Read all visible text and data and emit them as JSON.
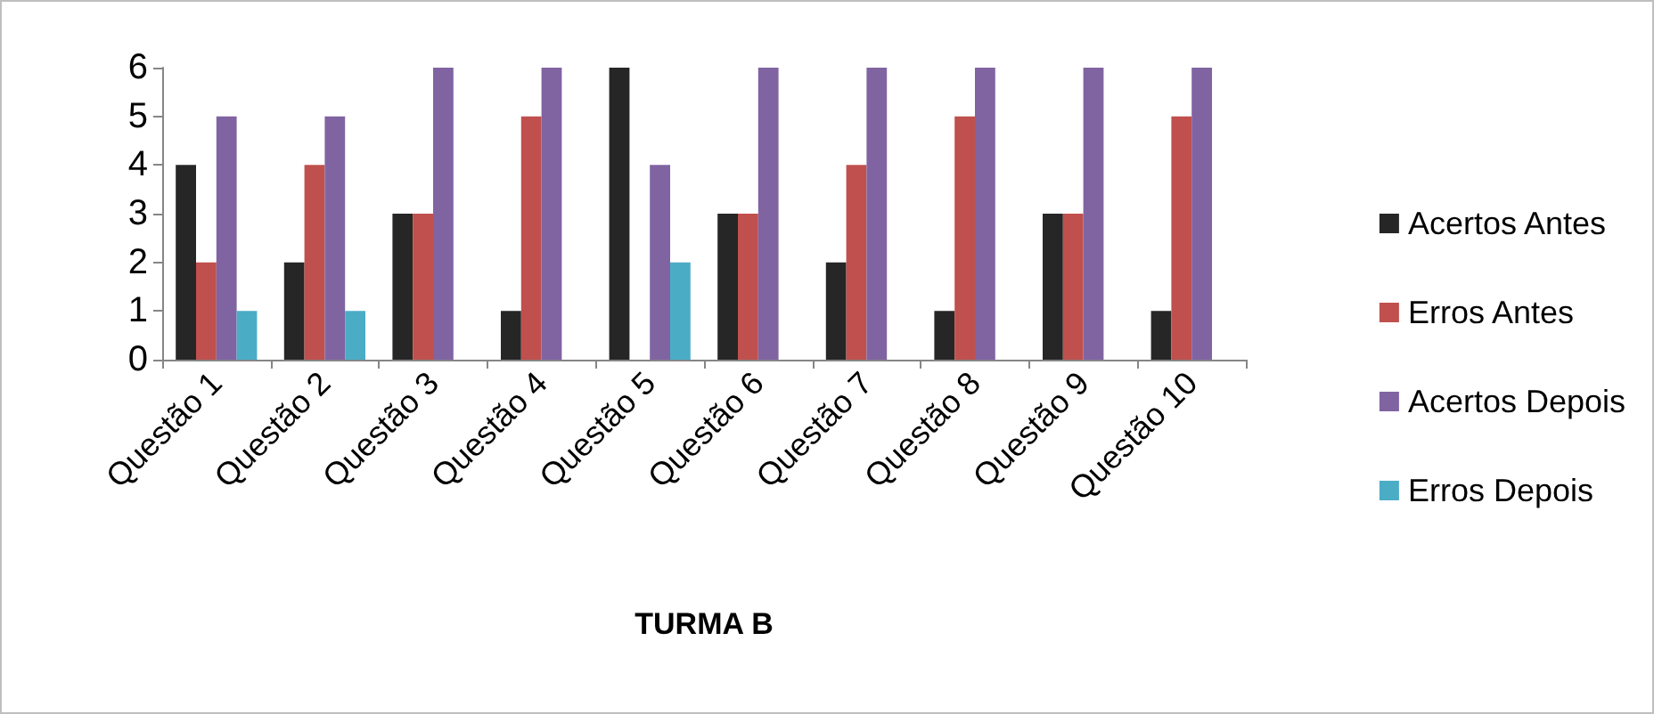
{
  "chart_data": {
    "type": "bar",
    "xlabel": "TURMA B",
    "categories": [
      "Questão 1",
      "Questão 2",
      "Questão 3",
      "Questão 4",
      "Questão 5",
      "Questão 6",
      "Questão 7",
      "Questão 8",
      "Questão 9",
      "Questão 10"
    ],
    "series": [
      {
        "name": "Acertos Antes",
        "color": "#262626",
        "values": [
          4,
          2,
          3,
          1,
          6,
          3,
          2,
          1,
          3,
          1
        ]
      },
      {
        "name": "Erros Antes",
        "color": "#c0504d",
        "values": [
          2,
          4,
          3,
          5,
          0,
          3,
          4,
          5,
          3,
          5
        ]
      },
      {
        "name": "Acertos Depois",
        "color": "#8064a2",
        "values": [
          5,
          5,
          6,
          6,
          4,
          6,
          6,
          6,
          6,
          6
        ]
      },
      {
        "name": "Erros Depois",
        "color": "#4bacc6",
        "values": [
          1,
          1,
          0,
          0,
          2,
          0,
          0,
          0,
          0,
          0
        ]
      }
    ],
    "ylim": [
      0,
      6
    ],
    "yticks": [
      0,
      1,
      2,
      3,
      4,
      5,
      6
    ],
    "grid": false,
    "legend": "right"
  }
}
